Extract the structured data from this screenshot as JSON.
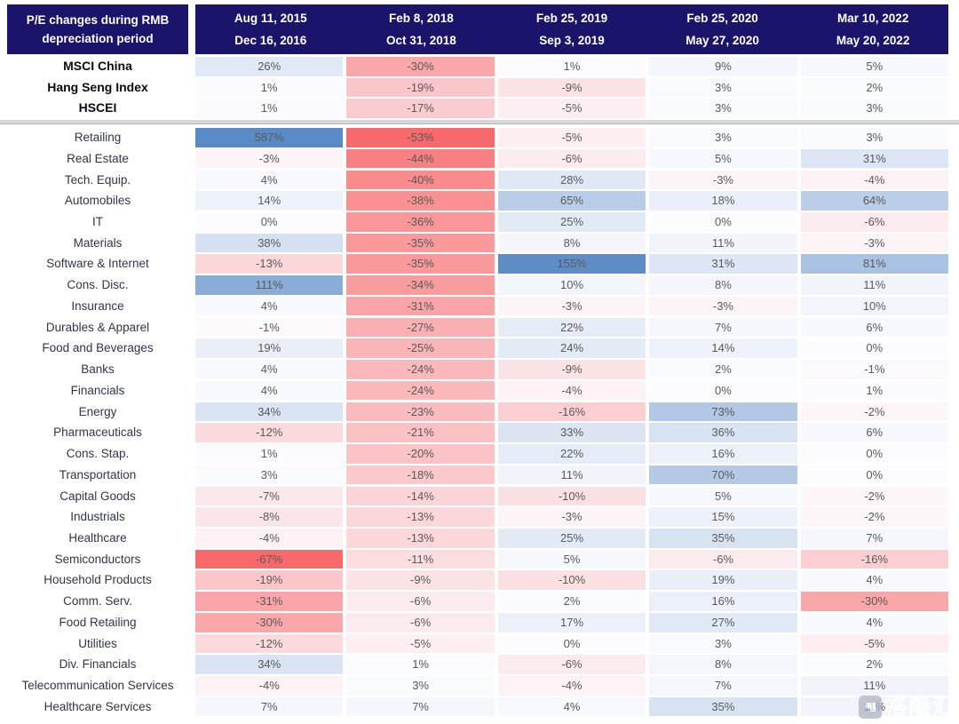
{
  "chart_data": {
    "type": "heatmap",
    "title": "P/E changes during RMB depreciation period",
    "title_line1": "P/E changes during RMB",
    "title_line2": "depreciation period",
    "units": "%",
    "legend_position": "none",
    "periods": [
      {
        "start": "Aug 11, 2015",
        "end": "Dec 16, 2016"
      },
      {
        "start": "Feb 8, 2018",
        "end": "Oct 31, 2018"
      },
      {
        "start": "Feb 25, 2019",
        "end": "Sep 3, 2019"
      },
      {
        "start": "Feb 25, 2020",
        "end": "May 27, 2020"
      },
      {
        "start": "Mar 10, 2022",
        "end": "May 20, 2022"
      }
    ],
    "index_rows": [
      {
        "label": "MSCI China",
        "values": [
          26,
          -30,
          1,
          9,
          5
        ]
      },
      {
        "label": "Hang Seng Index",
        "values": [
          1,
          -19,
          -9,
          3,
          2
        ]
      },
      {
        "label": "HSCEI",
        "values": [
          1,
          -17,
          -5,
          3,
          3
        ]
      }
    ],
    "sector_rows": [
      {
        "label": "Retailing",
        "values": [
          587,
          -53,
          -5,
          3,
          3
        ]
      },
      {
        "label": "Real Estate",
        "values": [
          -3,
          -44,
          -6,
          5,
          31
        ]
      },
      {
        "label": "Tech. Equip.",
        "values": [
          4,
          -40,
          28,
          -3,
          -4
        ]
      },
      {
        "label": "Automobiles",
        "values": [
          14,
          -38,
          65,
          18,
          64
        ]
      },
      {
        "label": "IT",
        "values": [
          0,
          -36,
          25,
          0,
          -6
        ]
      },
      {
        "label": "Materials",
        "values": [
          38,
          -35,
          8,
          11,
          -3
        ]
      },
      {
        "label": "Software & Internet",
        "values": [
          -13,
          -35,
          155,
          31,
          81
        ]
      },
      {
        "label": "Cons. Disc.",
        "values": [
          111,
          -34,
          10,
          8,
          11
        ]
      },
      {
        "label": "Insurance",
        "values": [
          4,
          -31,
          -3,
          -3,
          10
        ]
      },
      {
        "label": "Durables & Apparel",
        "values": [
          -1,
          -27,
          22,
          7,
          6
        ]
      },
      {
        "label": "Food and Beverages",
        "values": [
          19,
          -25,
          24,
          14,
          0
        ]
      },
      {
        "label": "Banks",
        "values": [
          4,
          -24,
          -9,
          2,
          -1
        ]
      },
      {
        "label": "Financials",
        "values": [
          4,
          -24,
          -4,
          0,
          1
        ]
      },
      {
        "label": "Energy",
        "values": [
          34,
          -23,
          -16,
          73,
          -2
        ]
      },
      {
        "label": "Pharmaceuticals",
        "values": [
          -12,
          -21,
          33,
          36,
          6
        ]
      },
      {
        "label": "Cons. Stap.",
        "values": [
          1,
          -20,
          22,
          16,
          0
        ]
      },
      {
        "label": "Transportation",
        "values": [
          3,
          -18,
          11,
          70,
          0
        ]
      },
      {
        "label": "Capital Goods",
        "values": [
          -7,
          -14,
          -10,
          5,
          -2
        ]
      },
      {
        "label": "Industrials",
        "values": [
          -8,
          -13,
          -3,
          15,
          -2
        ]
      },
      {
        "label": "Healthcare",
        "values": [
          -4,
          -13,
          25,
          35,
          7
        ]
      },
      {
        "label": "Semiconductors",
        "values": [
          -67,
          -11,
          5,
          -6,
          -16
        ]
      },
      {
        "label": "Household Products",
        "values": [
          -19,
          -9,
          -10,
          19,
          4
        ]
      },
      {
        "label": "Comm. Serv.",
        "values": [
          -31,
          -6,
          2,
          16,
          -30
        ]
      },
      {
        "label": "Food Retailing",
        "values": [
          -30,
          -6,
          17,
          27,
          4
        ]
      },
      {
        "label": "Utilities",
        "values": [
          -12,
          -5,
          0,
          3,
          -5
        ]
      },
      {
        "label": "Div. Financials",
        "values": [
          34,
          1,
          -6,
          8,
          2
        ]
      },
      {
        "label": "Telecommunication Services",
        "values": [
          -4,
          3,
          -4,
          7,
          11
        ]
      },
      {
        "label": "Healthcare Services",
        "values": [
          7,
          7,
          4,
          35,
          11
        ]
      }
    ],
    "color_scale": {
      "negative_full": "#F8696B",
      "neutral": "#FCFCFF",
      "positive_full": "#5A8AC6",
      "negative_saturation_at": -52,
      "positive_saturation_at": 158
    },
    "colors": {
      "header_bg": "#1B146B",
      "header_text": "#FFFFFF",
      "value_text": "#595959",
      "sector_label_text": "#33334A",
      "index_label_text": "#0A0A14",
      "divider": "#D7D7D9"
    }
  },
  "watermark": {
    "text": "格隆汇"
  }
}
